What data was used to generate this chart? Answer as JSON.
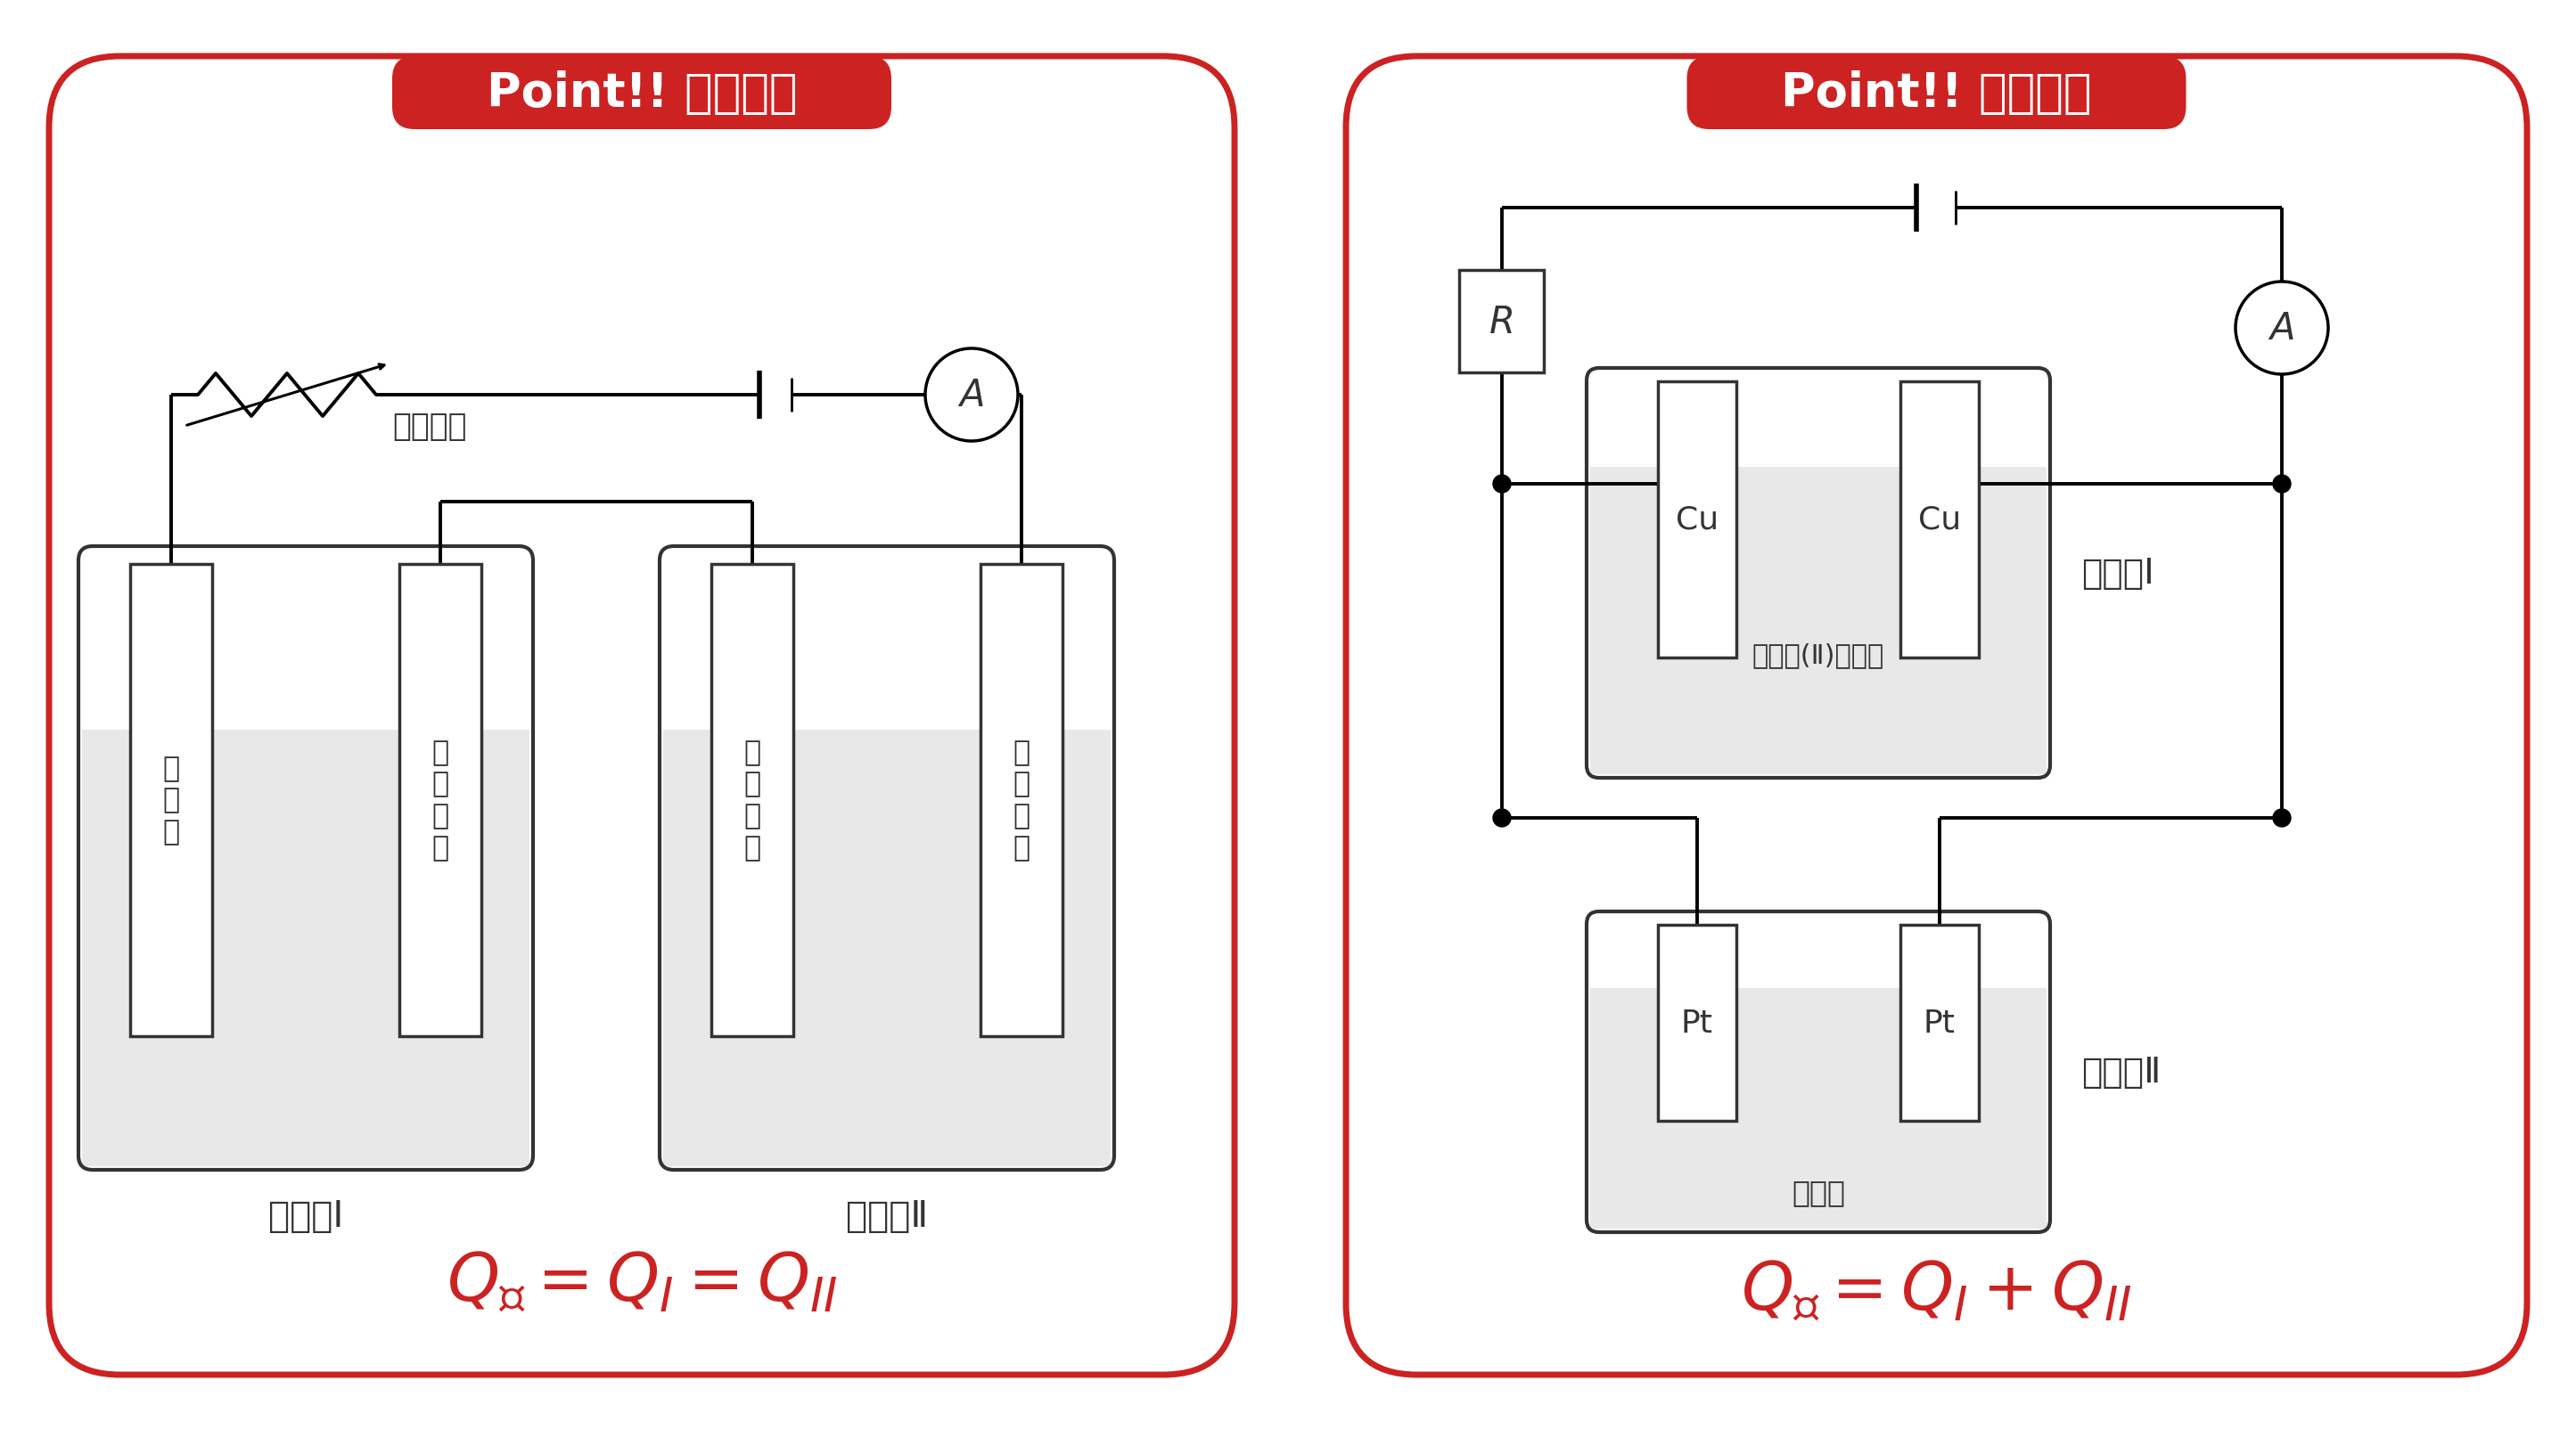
{
  "bg_color": "#ffffff",
  "red_color": "#cc2222",
  "light_gray": "#e8e8e8",
  "dark_gray": "#333333",
  "left_title": "Point!! 直列回路",
  "right_title": "Point!! 並列回路",
  "left_formula": "Q_{全} = Q_{I} = Q_{II}",
  "right_formula": "Q_{全} = Q_{I} + Q_{II}",
  "left_tank_labels": [
    "電解槽Ⅰ",
    "電解槽Ⅱ"
  ],
  "right_tank_labels": [
    "電解槽Ⅰ",
    "電解槽Ⅱ"
  ],
  "solution_label_1": "硫酸銅(Ⅱ)水溶液",
  "solution_label_2": "希硫酸",
  "resistor_label": "可変抵抗"
}
